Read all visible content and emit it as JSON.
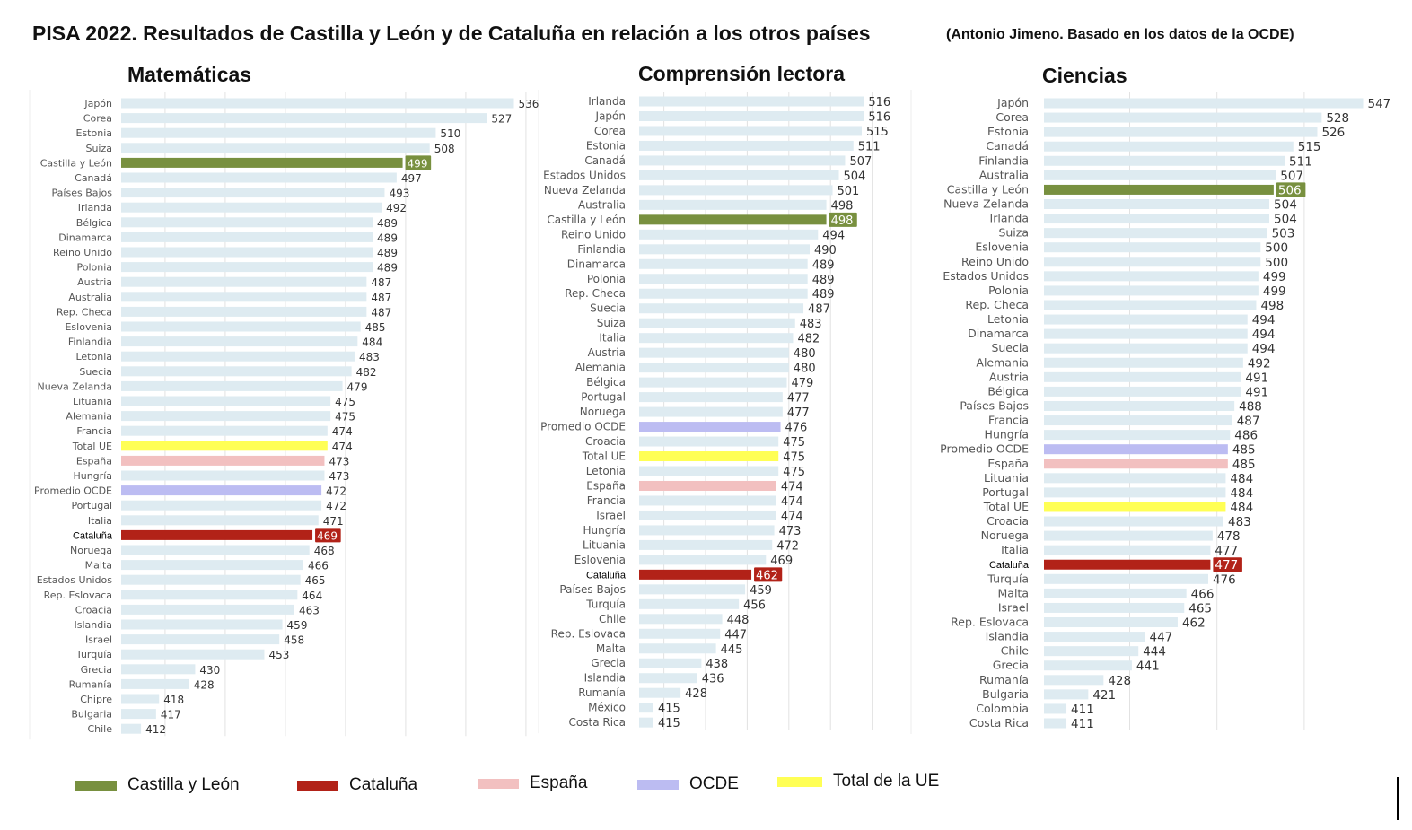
{
  "title": "PISA 2022. Resultados de Castilla y León y de Cataluña en relación a los otros países",
  "subtitle": "(Antonio Jimeno. Basado en los datos de la OCDE)",
  "colors": {
    "default": "#deebf1",
    "cyl": "#78903f",
    "cat": "#b22218",
    "esp": "#f2c0c0",
    "ocde": "#bcbcf2",
    "ue": "#ffff55"
  },
  "legend": [
    {
      "key": "cyl",
      "label": "Castilla y León"
    },
    {
      "key": "cat",
      "label": "Cataluña"
    },
    {
      "key": "esp",
      "label": "España"
    },
    {
      "key": "ocde",
      "label": "OCDE"
    },
    {
      "key": "ue",
      "label": "Total de la UE"
    }
  ],
  "chart_data": [
    {
      "type": "bar",
      "title": "Matemáticas",
      "orientation": "horizontal",
      "categories": [
        "Japón",
        "Corea",
        "Estonia",
        "Suiza",
        "Castilla y León",
        "Canadá",
        "Países Bajos",
        "Irlanda",
        "Bélgica",
        "Dinamarca",
        "Reino Unido",
        "Polonia",
        "Austria",
        "Australia",
        "Rep. Checa",
        "Eslovenia",
        "Finlandia",
        "Letonia",
        "Suecia",
        "Nueva Zelanda",
        "Lituania",
        "Alemania",
        "Francia",
        "Total UE",
        "España",
        "Hungría",
        "Promedio OCDE",
        "Portugal",
        "Italia",
        "Cataluña",
        "Noruega",
        "Malta",
        "Estados Unidos",
        "Rep. Eslovaca",
        "Croacia",
        "Islandia",
        "Israel",
        "Turquía",
        "Grecia",
        "Rumanía",
        "Chipre",
        "Bulgaria",
        "Chile"
      ],
      "values": [
        536,
        527,
        510,
        508,
        499,
        497,
        493,
        492,
        489,
        489,
        489,
        489,
        487,
        487,
        487,
        485,
        484,
        483,
        482,
        479,
        475,
        475,
        474,
        474,
        473,
        473,
        472,
        472,
        471,
        469,
        468,
        466,
        465,
        464,
        463,
        459,
        458,
        453,
        430,
        428,
        418,
        417,
        412
      ],
      "highlights": {
        "Castilla y León": "cyl",
        "Cataluña": "cat",
        "España": "esp",
        "Promedio OCDE": "ocde",
        "Total UE": "ue"
      }
    },
    {
      "type": "bar",
      "title": "Comprensión lectora",
      "orientation": "horizontal",
      "categories": [
        "Irlanda",
        "Japón",
        "Corea",
        "Estonia",
        "Canadá",
        "Estados Unidos",
        "Nueva Zelanda",
        "Australia",
        "Castilla y León",
        "Reino Unido",
        "Finlandia",
        "Dinamarca",
        "Polonia",
        "Rep. Checa",
        "Suecia",
        "Suiza",
        "Italia",
        "Austria",
        "Alemania",
        "Bélgica",
        "Portugal",
        "Noruega",
        "Promedio OCDE",
        "Croacia",
        "Total UE",
        "Letonia",
        "España",
        "Francia",
        "Israel",
        "Hungría",
        "Lituania",
        "Eslovenia",
        "Cataluña",
        "Países Bajos",
        "Turquía",
        "Chile",
        "Rep. Eslovaca",
        "Malta",
        "Grecia",
        "Islandia",
        "Rumanía",
        "México",
        "Costa Rica"
      ],
      "values": [
        516,
        516,
        515,
        511,
        507,
        504,
        501,
        498,
        498,
        494,
        490,
        489,
        489,
        489,
        487,
        483,
        482,
        480,
        480,
        479,
        477,
        477,
        476,
        475,
        475,
        475,
        474,
        474,
        474,
        473,
        472,
        469,
        462,
        459,
        456,
        448,
        447,
        445,
        438,
        436,
        428,
        415,
        415
      ],
      "highlights": {
        "Castilla y León": "cyl",
        "Cataluña": "cat",
        "España": "esp",
        "Promedio OCDE": "ocde",
        "Total UE": "ue"
      }
    },
    {
      "type": "bar",
      "title": "Ciencias",
      "orientation": "horizontal",
      "categories": [
        "Japón",
        "Corea",
        "Estonia",
        "Canadá",
        "Finlandia",
        "Australia",
        "Castilla y León",
        "Nueva Zelanda",
        "Irlanda",
        "Suiza",
        "Eslovenia",
        "Reino Unido",
        "Estados Unidos",
        "Polonia",
        "Rep. Checa",
        "Letonia",
        "Dinamarca",
        "Suecia",
        "Alemania",
        "Austria",
        "Bélgica",
        "Países Bajos",
        "Francia",
        "Hungría",
        "Promedio OCDE",
        "España",
        "Lituania",
        "Portugal",
        "Total UE",
        "Croacia",
        "Noruega",
        "Italia",
        "Cataluña",
        "Turquía",
        "Malta",
        "Israel",
        "Rep. Eslovaca",
        "Islandia",
        "Chile",
        "Grecia",
        "Rumanía",
        "Bulgaria",
        "Colombia",
        "Costa Rica"
      ],
      "values": [
        547,
        528,
        526,
        515,
        511,
        507,
        506,
        504,
        504,
        503,
        500,
        500,
        499,
        499,
        498,
        494,
        494,
        494,
        492,
        491,
        491,
        488,
        487,
        486,
        485,
        485,
        484,
        484,
        484,
        483,
        478,
        477,
        477,
        476,
        466,
        465,
        462,
        447,
        444,
        441,
        428,
        421,
        411,
        411
      ],
      "highlights": {
        "Castilla y León": "cyl",
        "Cataluña": "cat",
        "España": "esp",
        "Promedio OCDE": "ocde",
        "Total UE": "ue"
      }
    }
  ]
}
